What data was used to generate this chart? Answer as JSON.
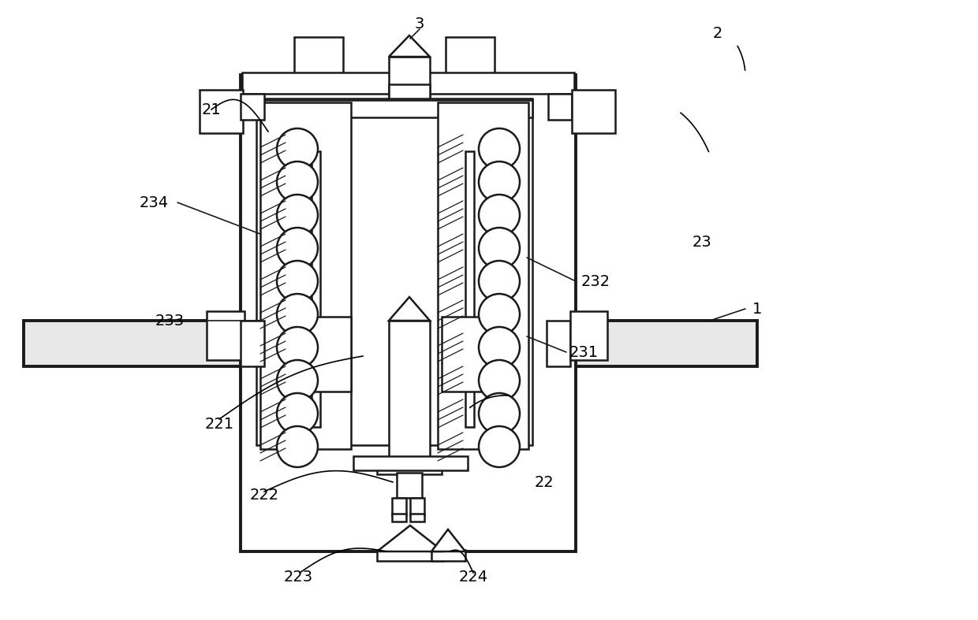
{
  "bg_color": "#ffffff",
  "lc": "#1a1a1a",
  "lw": 1.8,
  "tlw": 2.8,
  "fig_width": 12.4,
  "fig_height": 7.87
}
